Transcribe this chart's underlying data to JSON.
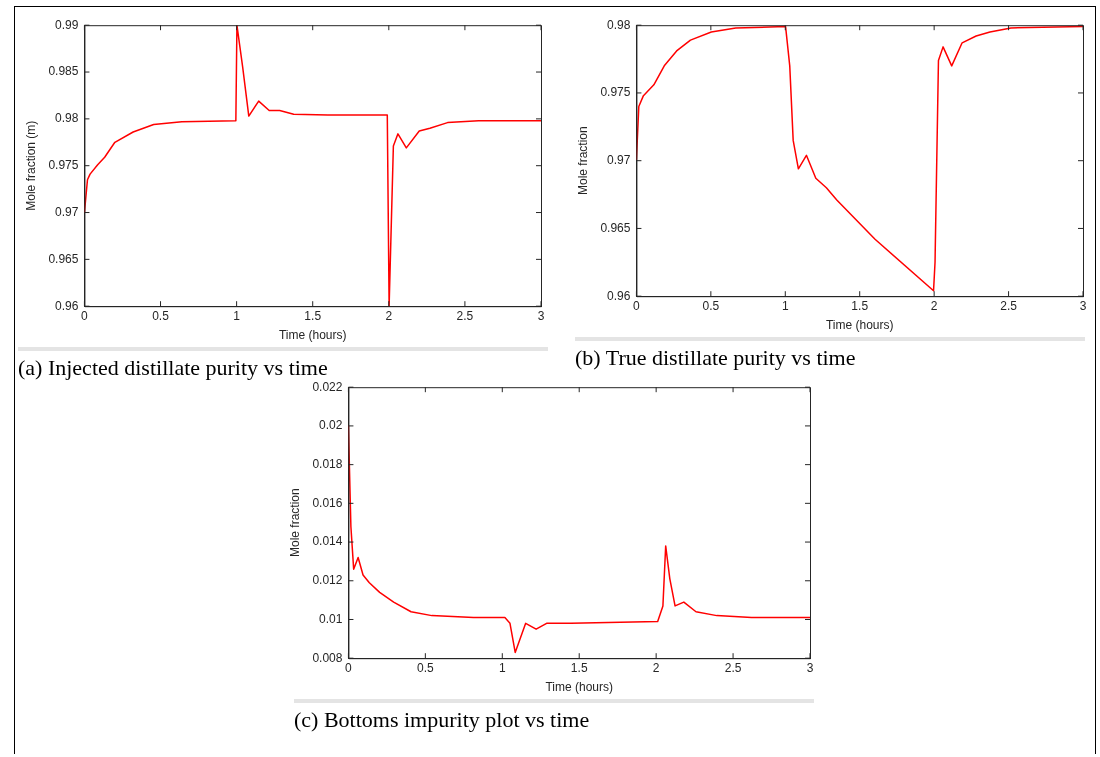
{
  "chart_data": [
    {
      "type": "line",
      "xlabel": "Time (hours)",
      "ylabel": "Mole fraction (m)",
      "annotations": [
        "(a)  Injected distillate purity vs time"
      ],
      "xlim": [
        0,
        3
      ],
      "xticks": [
        0,
        0.5,
        1,
        1.5,
        2,
        2.5,
        3
      ],
      "ylim": [
        0.96,
        0.99
      ],
      "yticks": [
        0.96,
        0.965,
        0.97,
        0.975,
        0.98,
        0.985,
        0.99
      ],
      "grid": false,
      "marker": "none",
      "series": [
        {
          "color": "#ff0000",
          "x": [
            0,
            0.02,
            0.037,
            0.087,
            0.133,
            0.2,
            0.32,
            0.455,
            0.64,
            0.995,
            1.002,
            1.04,
            1.08,
            1.145,
            1.214,
            1.283,
            1.375,
            1.6,
            1.99,
            2.002,
            2.03,
            2.06,
            2.115,
            2.2,
            2.27,
            2.386,
            2.59,
            3
          ],
          "values": [
            0.97,
            0.9735,
            0.9741,
            0.9751,
            0.9759,
            0.9775,
            0.9786,
            0.9794,
            0.9797,
            0.9798,
            0.99,
            0.9855,
            0.9803,
            0.9819,
            0.9809,
            0.9809,
            0.9805,
            0.9804,
            0.9804,
            0.96,
            0.9771,
            0.9784,
            0.9769,
            0.9787,
            0.979,
            0.9796,
            0.9798,
            0.9798
          ]
        }
      ]
    },
    {
      "type": "line",
      "xlabel": "Time (hours)",
      "ylabel": "Mole fraction",
      "annotations": [
        "(b)  True distillate purity vs time"
      ],
      "xlim": [
        0,
        3
      ],
      "xticks": [
        0,
        0.5,
        1,
        1.5,
        2,
        2.5,
        3
      ],
      "ylim": [
        0.96,
        0.98
      ],
      "yticks": [
        0.96,
        0.965,
        0.97,
        0.975,
        0.98
      ],
      "grid": false,
      "marker": "none",
      "series": [
        {
          "color": "#ff0000",
          "x": [
            0,
            0.016,
            0.047,
            0.117,
            0.187,
            0.27,
            0.363,
            0.503,
            0.667,
            1.002,
            1.03,
            1.053,
            1.088,
            1.142,
            1.205,
            1.276,
            1.346,
            1.603,
            1.996,
            2.006,
            2.029,
            2.06,
            2.118,
            2.188,
            2.282,
            2.375,
            2.516,
            3
          ],
          "values": [
            0.9701,
            0.974,
            0.9748,
            0.9756,
            0.977,
            0.9781,
            0.9789,
            0.9795,
            0.9798,
            0.9799,
            0.977,
            0.9715,
            0.9694,
            0.9704,
            0.9687,
            0.968,
            0.9671,
            0.9642,
            0.9604,
            0.9625,
            0.9774,
            0.9784,
            0.977,
            0.9787,
            0.9792,
            0.9795,
            0.9798,
            0.9799
          ]
        }
      ]
    },
    {
      "type": "line",
      "xlabel": "Time (hours)",
      "ylabel": "Mole fraction",
      "annotations": [
        "(c) Bottoms impurity plot vs time"
      ],
      "xlim": [
        0,
        3
      ],
      "xticks": [
        0,
        0.5,
        1,
        1.5,
        2,
        2.5,
        3
      ],
      "ylim": [
        0.008,
        0.022
      ],
      "yticks": [
        0.008,
        0.01,
        0.012,
        0.014,
        0.016,
        0.018,
        0.02,
        0.022
      ],
      "grid": false,
      "marker": "none",
      "series": [
        {
          "color": "#ff0000",
          "x": [
            0,
            0.016,
            0.034,
            0.063,
            0.095,
            0.136,
            0.203,
            0.294,
            0.407,
            0.542,
            0.813,
            1.017,
            1.05,
            1.084,
            1.152,
            1.22,
            1.288,
            1.446,
            2.01,
            2.044,
            2.062,
            2.089,
            2.123,
            2.18,
            2.259,
            2.394,
            2.62,
            3
          ],
          "values": [
            0.02,
            0.0148,
            0.0126,
            0.0132,
            0.0123,
            0.0119,
            0.0114,
            0.0109,
            0.0104,
            0.0102,
            0.0101,
            0.0101,
            0.0098,
            0.0083,
            0.0098,
            0.0095,
            0.0098,
            0.0098,
            0.0099,
            0.0107,
            0.0138,
            0.0121,
            0.0107,
            0.0109,
            0.0104,
            0.0102,
            0.0101,
            0.0101
          ]
        }
      ]
    }
  ]
}
